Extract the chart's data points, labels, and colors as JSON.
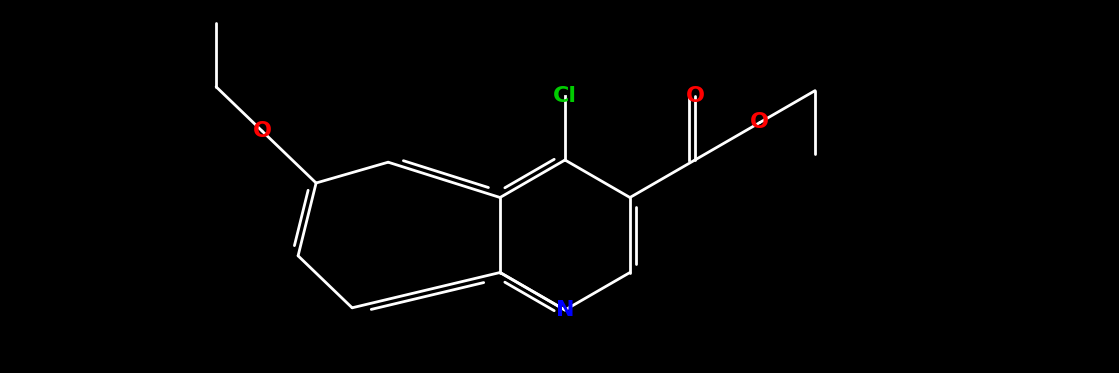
{
  "bg_color": "#000000",
  "bond_color": "#ffffff",
  "bond_lw": 2.0,
  "atom_colors": {
    "N": "#0000ff",
    "O": "#ff0000",
    "Cl": "#00cc00"
  },
  "font_size": 16,
  "figsize": [
    11.19,
    3.73
  ],
  "dpi": 100
}
